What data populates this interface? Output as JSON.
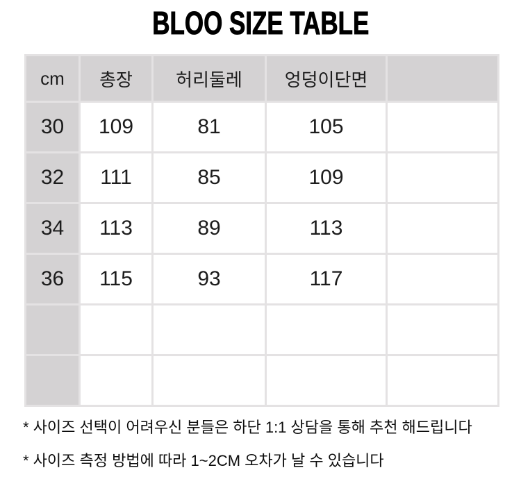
{
  "title": "BLOO SIZE TABLE",
  "table": {
    "columns": [
      "cm",
      "총장",
      "허리둘레",
      "엉덩이단면",
      ""
    ],
    "rows": [
      {
        "size": "30",
        "values": [
          "109",
          "81",
          "105",
          ""
        ]
      },
      {
        "size": "32",
        "values": [
          "111",
          "85",
          "109",
          ""
        ]
      },
      {
        "size": "34",
        "values": [
          "113",
          "89",
          "113",
          ""
        ]
      },
      {
        "size": "36",
        "values": [
          "115",
          "93",
          "117",
          ""
        ]
      },
      {
        "size": "",
        "values": [
          "",
          "",
          "",
          ""
        ]
      },
      {
        "size": "",
        "values": [
          "",
          "",
          "",
          ""
        ]
      }
    ]
  },
  "notes": [
    "* 사이즈 선택이 어려우신 분들은 하단 1:1 상담을 통해 추천 해드립니다",
    "* 사이즈 측정 방법에 따라 1~2CM 오차가 날 수 있습니다"
  ],
  "colors": {
    "header_cell_gray": "#d4d2d3",
    "cell_border": "#e4e2e3",
    "cell_white": "#ffffff",
    "text": "#1c1c1c"
  }
}
